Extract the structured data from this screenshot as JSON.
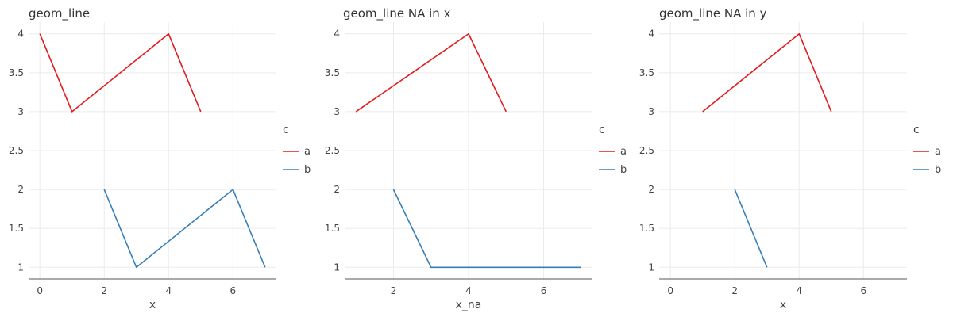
{
  "colors": {
    "a": "#e41a1c",
    "b": "#377eb8"
  },
  "chart_data": [
    {
      "type": "line",
      "title": "geom_line",
      "xlabel": "x",
      "ylabel": "",
      "xlim": [
        -0.35,
        7.35
      ],
      "ylim": [
        0.85,
        4.15
      ],
      "xticks": [
        0,
        2,
        4,
        6
      ],
      "yticks": [
        1,
        1.5,
        2,
        2.5,
        3,
        3.5,
        4
      ],
      "ytick_labels": [
        "1",
        "1.5",
        "2",
        "2.5",
        "3",
        "3.5",
        "4"
      ],
      "legend": {
        "title": "c",
        "placement": "right",
        "entries": [
          "a",
          "b"
        ]
      },
      "series": [
        {
          "name": "a",
          "color_key": "a",
          "x": [
            0,
            1,
            4,
            5
          ],
          "y": [
            4,
            3,
            4,
            3
          ]
        },
        {
          "name": "b",
          "color_key": "b",
          "x": [
            2,
            3,
            6,
            7
          ],
          "y": [
            2,
            1,
            2,
            1
          ]
        }
      ]
    },
    {
      "type": "line",
      "title": "geom_line NA in x",
      "xlabel": "x_na",
      "ylabel": "",
      "xlim": [
        0.7,
        7.3
      ],
      "ylim": [
        0.85,
        4.15
      ],
      "xticks": [
        2,
        4,
        6
      ],
      "yticks": [
        1,
        1.5,
        2,
        2.5,
        3,
        3.5,
        4
      ],
      "ytick_labels": [
        "1",
        "1.5",
        "2",
        "2.5",
        "3",
        "3.5",
        "4"
      ],
      "legend": {
        "title": "c",
        "placement": "right",
        "entries": [
          "a",
          "b"
        ]
      },
      "series": [
        {
          "name": "a",
          "color_key": "a",
          "x": [
            1,
            4,
            5
          ],
          "y": [
            3,
            4,
            3
          ]
        },
        {
          "name": "b",
          "color_key": "b",
          "x": [
            2,
            3,
            7
          ],
          "y": [
            2,
            1,
            1
          ]
        }
      ]
    },
    {
      "type": "line",
      "title": "geom_line NA in y",
      "xlabel": "x",
      "ylabel": "",
      "xlim": [
        -0.35,
        7.35
      ],
      "ylim": [
        0.85,
        4.15
      ],
      "xticks": [
        0,
        2,
        4,
        6
      ],
      "yticks": [
        1,
        1.5,
        2,
        2.5,
        3,
        3.5,
        4
      ],
      "ytick_labels": [
        "1",
        "1.5",
        "2",
        "2.5",
        "3",
        "3.5",
        "4"
      ],
      "legend": {
        "title": "c",
        "placement": "right",
        "entries": [
          "a",
          "b"
        ]
      },
      "series": [
        {
          "name": "a",
          "color_key": "a",
          "x": [
            1,
            4,
            5
          ],
          "y": [
            3,
            4,
            3
          ]
        },
        {
          "name": "b",
          "color_key": "b",
          "x": [
            2,
            3
          ],
          "y": [
            2,
            1
          ]
        }
      ]
    }
  ]
}
